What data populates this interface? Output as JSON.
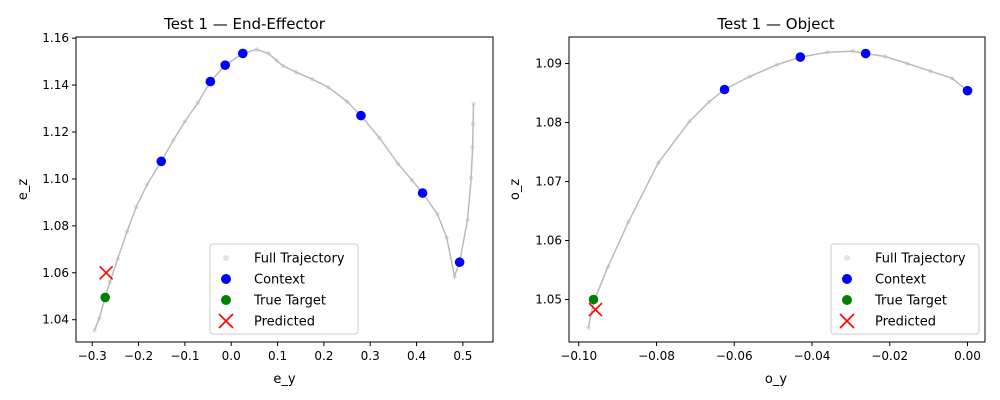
{
  "chart_data": [
    {
      "type": "scatter",
      "title": "Test 1 — End-Effector",
      "xlabel": "e_y",
      "ylabel": "e_z",
      "xlim": [
        -0.335,
        0.565
      ],
      "ylim": [
        1.0305,
        1.1605
      ],
      "xticks": [
        -0.3,
        -0.2,
        -0.1,
        0.0,
        0.1,
        0.2,
        0.3,
        0.4,
        0.5
      ],
      "xtick_labels": [
        "−0.3",
        "−0.2",
        "−0.1",
        "0.0",
        "0.1",
        "0.2",
        "0.3",
        "0.4",
        "0.5"
      ],
      "yticks": [
        1.04,
        1.06,
        1.08,
        1.1,
        1.12,
        1.14,
        1.16
      ],
      "ytick_labels": [
        "1.04",
        "1.06",
        "1.08",
        "1.10",
        "1.12",
        "1.14",
        "1.16"
      ],
      "legend_position": "lower-right",
      "legend": [
        "Full Trajectory",
        "Context",
        "True Target",
        "Predicted"
      ],
      "series": [
        {
          "name": "Full Trajectory",
          "kind": "line+faint-points",
          "color": "#bbbbbb",
          "points": [
            [
              -0.295,
              1.0355
            ],
            [
              -0.285,
              1.0405
            ],
            [
              -0.272,
              1.0495
            ],
            [
              -0.262,
              1.056
            ],
            [
              -0.245,
              1.066
            ],
            [
              -0.225,
              1.0775
            ],
            [
              -0.205,
              1.088
            ],
            [
              -0.182,
              1.0975
            ],
            [
              -0.151,
              1.1075
            ],
            [
              -0.125,
              1.1165
            ],
            [
              -0.1,
              1.1245
            ],
            [
              -0.072,
              1.1325
            ],
            [
              -0.045,
              1.1415
            ],
            [
              -0.013,
              1.1485
            ],
            [
              0.025,
              1.1535
            ],
            [
              0.055,
              1.1552
            ],
            [
              0.08,
              1.1535
            ],
            [
              0.098,
              1.1505
            ],
            [
              0.112,
              1.1482
            ],
            [
              0.14,
              1.1455
            ],
            [
              0.175,
              1.1425
            ],
            [
              0.21,
              1.139
            ],
            [
              0.25,
              1.133
            ],
            [
              0.28,
              1.127
            ],
            [
              0.32,
              1.1175
            ],
            [
              0.36,
              1.1065
            ],
            [
              0.39,
              1.0995
            ],
            [
              0.413,
              1.094
            ],
            [
              0.445,
              1.085
            ],
            [
              0.465,
              1.075
            ],
            [
              0.482,
              1.0585
            ],
            [
              0.493,
              1.0645
            ],
            [
              0.51,
              1.0825
            ],
            [
              0.518,
              1.1005
            ],
            [
              0.521,
              1.1135
            ],
            [
              0.522,
              1.1235
            ],
            [
              0.523,
              1.132
            ]
          ]
        },
        {
          "name": "Context",
          "color": "#0000ff",
          "points": [
            [
              -0.151,
              1.1075
            ],
            [
              -0.045,
              1.1415
            ],
            [
              -0.013,
              1.1485
            ],
            [
              0.025,
              1.1535
            ],
            [
              0.28,
              1.127
            ],
            [
              0.413,
              1.094
            ],
            [
              0.493,
              1.0645
            ]
          ]
        },
        {
          "name": "True Target",
          "color": "#008000",
          "points": [
            [
              -0.272,
              1.0495
            ]
          ]
        },
        {
          "name": "Predicted",
          "color": "#ff0000",
          "marker": "x",
          "points": [
            [
              -0.27,
              1.06
            ]
          ]
        }
      ]
    },
    {
      "type": "scatter",
      "title": "Test 1 — Object",
      "xlabel": "o_y",
      "ylabel": "o_z",
      "xlim": [
        -0.1025,
        0.0045
      ],
      "ylim": [
        1.0428,
        1.0945
      ],
      "xticks": [
        -0.1,
        -0.08,
        -0.06,
        -0.04,
        -0.02,
        0.0
      ],
      "xtick_labels": [
        "−0.10",
        "−0.08",
        "−0.06",
        "−0.04",
        "−0.02",
        "0.00"
      ],
      "yticks": [
        1.05,
        1.06,
        1.07,
        1.08,
        1.09
      ],
      "ytick_labels": [
        "1.05",
        "1.06",
        "1.07",
        "1.08",
        "1.09"
      ],
      "legend_position": "lower-right",
      "legend": [
        "Full Trajectory",
        "Context",
        "True Target",
        "Predicted"
      ],
      "series": [
        {
          "name": "Full Trajectory",
          "kind": "line+faint-points",
          "color": "#bbbbbb",
          "points": [
            [
              -0.0975,
              1.0452
            ],
            [
              -0.0962,
              1.0495
            ],
            [
              -0.0925,
              1.0555
            ],
            [
              -0.0872,
              1.0632
            ],
            [
              -0.0795,
              1.0732
            ],
            [
              -0.0715,
              1.0802
            ],
            [
              -0.0665,
              1.0835
            ],
            [
              -0.0625,
              1.0856
            ],
            [
              -0.056,
              1.0878
            ],
            [
              -0.049,
              1.0898
            ],
            [
              -0.043,
              1.0911
            ],
            [
              -0.036,
              1.0919
            ],
            [
              -0.0295,
              1.0921
            ],
            [
              -0.0262,
              1.0917
            ],
            [
              -0.0212,
              1.0912
            ],
            [
              -0.0155,
              1.09
            ],
            [
              -0.0095,
              1.0887
            ],
            [
              -0.004,
              1.0875
            ],
            [
              0.0,
              1.0854
            ]
          ]
        },
        {
          "name": "Context",
          "color": "#0000ff",
          "points": [
            [
              -0.0625,
              1.0856
            ],
            [
              -0.043,
              1.0911
            ],
            [
              -0.0262,
              1.0917
            ],
            [
              0.0,
              1.0854
            ]
          ]
        },
        {
          "name": "True Target",
          "color": "#008000",
          "points": [
            [
              -0.0962,
              1.05
            ]
          ]
        },
        {
          "name": "Predicted",
          "color": "#ff0000",
          "marker": "x",
          "points": [
            [
              -0.0957,
              1.0483
            ]
          ]
        }
      ]
    }
  ]
}
